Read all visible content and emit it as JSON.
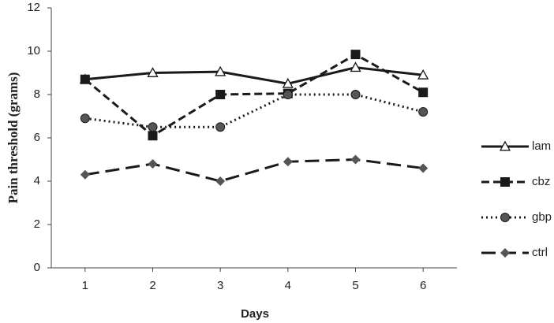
{
  "chart_data": {
    "type": "line",
    "x_label": "Days",
    "y_label": "Pain threshold (grams)",
    "x": [
      1,
      2,
      3,
      4,
      5,
      6
    ],
    "xlim": [
      0.5,
      6.5
    ],
    "xticks": [
      1,
      2,
      3,
      4,
      5,
      6
    ],
    "ylim": [
      0,
      12
    ],
    "yticks": [
      0,
      2,
      4,
      6,
      8,
      10,
      12
    ],
    "grid": false,
    "legend": "right",
    "series": [
      {
        "name": "lam",
        "color": "#1a1a1a",
        "dash": "solid",
        "marker": "triangle",
        "values": [
          8.7,
          9.0,
          9.05,
          8.5,
          9.25,
          8.9
        ]
      },
      {
        "name": "cbz",
        "color": "#1a1a1a",
        "dash": "dashed",
        "marker": "square",
        "values": [
          8.7,
          6.1,
          8.0,
          8.05,
          9.85,
          8.1
        ]
      },
      {
        "name": "gbp",
        "color": "#1a1a1a",
        "dash": "dotted",
        "marker": "circle",
        "values": [
          6.9,
          6.5,
          6.5,
          8.0,
          8.0,
          7.2
        ]
      },
      {
        "name": "ctrl",
        "color": "#1a1a1a",
        "dash": "longdash",
        "marker": "diamond",
        "values": [
          4.3,
          4.8,
          4.0,
          4.9,
          5.0,
          4.6
        ]
      }
    ]
  }
}
